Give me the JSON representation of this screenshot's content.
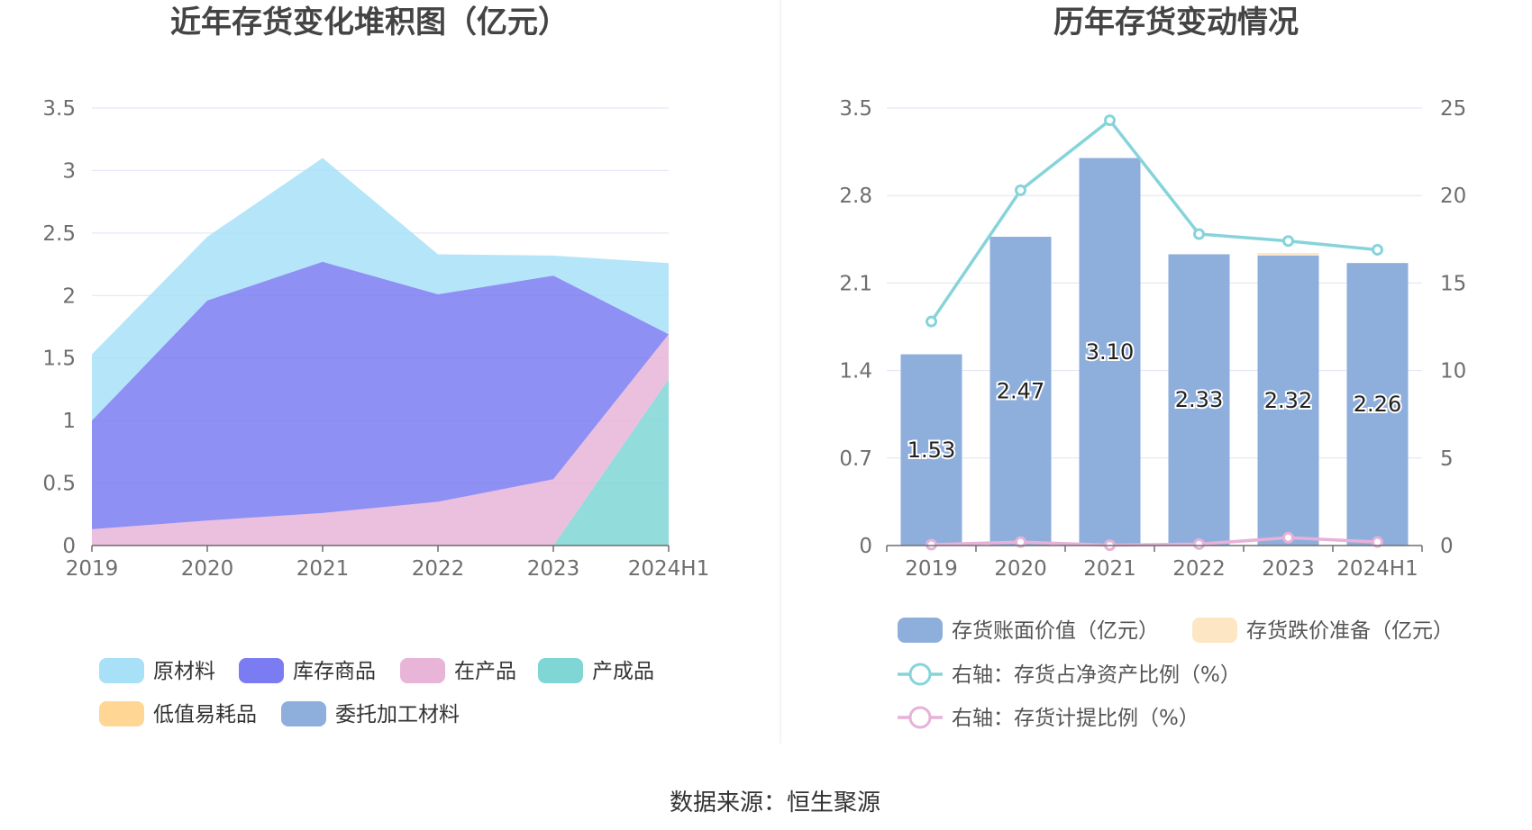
{
  "source": "数据来源：恒生聚源",
  "chart_data": [
    {
      "type": "area",
      "title": "近年存货变化堆积图（亿元）",
      "categories": [
        "2019",
        "2020",
        "2021",
        "2022",
        "2023",
        "2024H1"
      ],
      "ylim": [
        0,
        3.5
      ],
      "yticks": [
        "0",
        "0.5",
        "1",
        "1.5",
        "2",
        "2.5",
        "3",
        "3.5"
      ],
      "stacked": true,
      "series": [
        {
          "name": "产成品",
          "color": "#7fd6d5",
          "values": [
            0,
            0,
            0,
            0,
            0,
            1.33
          ]
        },
        {
          "name": "在产品",
          "color": "#e8b4d8",
          "values": [
            0.13,
            0.2,
            0.26,
            0.35,
            0.53,
            0.36
          ]
        },
        {
          "name": "库存商品",
          "color": "#7b7cf2",
          "values": [
            0.87,
            1.76,
            2.01,
            1.66,
            1.63,
            0
          ]
        },
        {
          "name": "原材料",
          "color": "#a8e0f8",
          "values": [
            0.53,
            0.51,
            0.83,
            0.32,
            0.16,
            0.57
          ]
        },
        {
          "name": "低值易耗品",
          "color": "#ffd694",
          "values": [
            0,
            0,
            0,
            0,
            0,
            0
          ]
        },
        {
          "name": "委托加工材料",
          "color": "#8eaedc",
          "values": [
            0,
            0,
            0,
            0,
            0,
            0
          ]
        }
      ],
      "legend": [
        "原材料",
        "库存商品",
        "在产品",
        "产成品",
        "低值易耗品",
        "委托加工材料"
      ],
      "grid": true,
      "legend_position": "bottom"
    },
    {
      "type": "bar",
      "title": "历年存货变动情况",
      "categories": [
        "2019",
        "2020",
        "2021",
        "2022",
        "2023",
        "2024H1"
      ],
      "ylim": [
        0,
        3.5
      ],
      "yticks": [
        "0",
        "0.7",
        "1.4",
        "2.1",
        "2.8",
        "3.5"
      ],
      "y2lim": [
        0,
        25
      ],
      "y2ticks": [
        "0",
        "5",
        "10",
        "15",
        "20",
        "25"
      ],
      "series": [
        {
          "name": "存货账面价值（亿元）",
          "type": "bar",
          "axis": "left",
          "color": "#8eaedc",
          "values": [
            1.53,
            2.47,
            3.1,
            2.33,
            2.32,
            2.26
          ],
          "labels": [
            "1.53",
            "2.47",
            "3.10",
            "2.33",
            "2.32",
            "2.26"
          ]
        },
        {
          "name": "存货跌价准备（亿元）",
          "type": "bar",
          "axis": "left",
          "color": "#fde6c4",
          "values": [
            0,
            0,
            0,
            0,
            0.02,
            0
          ]
        },
        {
          "name": "右轴：存货占净资产比例（%）",
          "type": "line",
          "axis": "right",
          "color": "#86d4da",
          "values": [
            12.8,
            20.3,
            24.3,
            17.8,
            17.4,
            16.9
          ]
        },
        {
          "name": "右轴：存货计提比例（%）",
          "type": "line",
          "axis": "right",
          "color": "#e7b1d9",
          "values": [
            0.05,
            0.2,
            0.02,
            0.08,
            0.45,
            0.2
          ]
        }
      ],
      "grid": true,
      "legend_position": "bottom"
    }
  ]
}
